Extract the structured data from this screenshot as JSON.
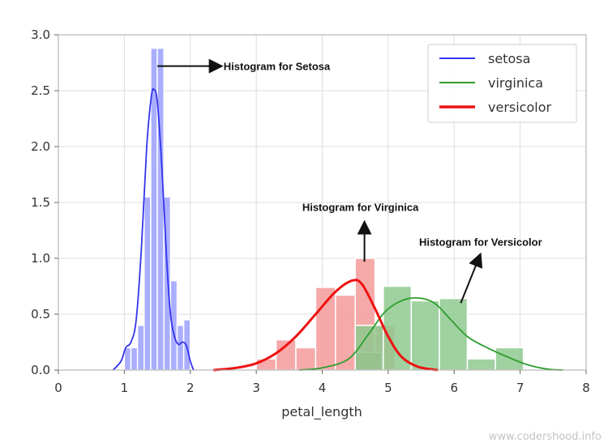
{
  "chart_data": {
    "type": "histogram",
    "xlabel": "petal_length",
    "ylabel": "",
    "xlim": [
      0,
      8
    ],
    "ylim": [
      0,
      3.0
    ],
    "xticks": [
      "0",
      "1",
      "2",
      "3",
      "4",
      "5",
      "6",
      "7",
      "8"
    ],
    "yticks": [
      "0.0",
      "0.5",
      "1.0",
      "1.5",
      "2.0",
      "2.5",
      "3.0"
    ],
    "grid": true,
    "legend": {
      "position": "top-right",
      "entries": [
        {
          "label": "setosa",
          "color": "#3333ee"
        },
        {
          "label": "virginica",
          "color": "#2e9e2e"
        },
        {
          "label": "versicolor",
          "color": "#ee1111"
        }
      ]
    },
    "series": [
      {
        "name": "setosa",
        "color": "#3333ee",
        "bar_color": "#9aa0ff",
        "bin_width": 0.1,
        "bins": [
          {
            "x0": 1.0,
            "h": 0.2
          },
          {
            "x0": 1.1,
            "h": 0.2
          },
          {
            "x0": 1.2,
            "h": 0.4
          },
          {
            "x0": 1.3,
            "h": 1.55
          },
          {
            "x0": 1.4,
            "h": 2.88
          },
          {
            "x0": 1.5,
            "h": 2.88
          },
          {
            "x0": 1.6,
            "h": 1.55
          },
          {
            "x0": 1.7,
            "h": 0.8
          },
          {
            "x0": 1.8,
            "h": 0.4
          },
          {
            "x0": 1.9,
            "h": 0.45
          }
        ],
        "kde": [
          [
            0.83,
            0.0
          ],
          [
            0.95,
            0.08
          ],
          [
            1.02,
            0.2
          ],
          [
            1.1,
            0.25
          ],
          [
            1.18,
            0.45
          ],
          [
            1.26,
            1.1
          ],
          [
            1.34,
            2.0
          ],
          [
            1.41,
            2.45
          ],
          [
            1.45,
            2.51
          ],
          [
            1.5,
            2.4
          ],
          [
            1.57,
            1.8
          ],
          [
            1.64,
            1.0
          ],
          [
            1.7,
            0.5
          ],
          [
            1.76,
            0.3
          ],
          [
            1.82,
            0.23
          ],
          [
            1.88,
            0.25
          ],
          [
            1.94,
            0.22
          ],
          [
            2.0,
            0.08
          ],
          [
            2.05,
            0.0
          ]
        ]
      },
      {
        "name": "virginica",
        "color": "#2e9e2e",
        "bar_color": "#8fc98f",
        "bin_width": 0.425,
        "bins": [
          {
            "x0": 4.5,
            "h": 0.4
          },
          {
            "x0": 4.925,
            "h": 0.75
          },
          {
            "x0": 5.35,
            "h": 0.62
          },
          {
            "x0": 5.775,
            "h": 0.64
          },
          {
            "x0": 6.2,
            "h": 0.1
          },
          {
            "x0": 6.625,
            "h": 0.2
          }
        ],
        "kde": [
          [
            3.65,
            0.0
          ],
          [
            4.0,
            0.02
          ],
          [
            4.4,
            0.1
          ],
          [
            4.7,
            0.32
          ],
          [
            4.95,
            0.52
          ],
          [
            5.2,
            0.62
          ],
          [
            5.45,
            0.645
          ],
          [
            5.7,
            0.6
          ],
          [
            5.95,
            0.45
          ],
          [
            6.2,
            0.3
          ],
          [
            6.5,
            0.2
          ],
          [
            6.8,
            0.12
          ],
          [
            7.1,
            0.05
          ],
          [
            7.4,
            0.01
          ],
          [
            7.65,
            0.0
          ]
        ]
      },
      {
        "name": "versicolor",
        "color": "#ee1111",
        "bar_color": "#f59a9a",
        "bin_width": 0.3,
        "bins": [
          {
            "x0": 3.0,
            "h": 0.1
          },
          {
            "x0": 3.3,
            "h": 0.27
          },
          {
            "x0": 3.6,
            "h": 0.2
          },
          {
            "x0": 3.9,
            "h": 0.74
          },
          {
            "x0": 4.2,
            "h": 0.67
          },
          {
            "x0": 4.5,
            "h": 1.0
          },
          {
            "x0": 4.8,
            "h": 0.4
          }
        ],
        "overlap_bins": [
          {
            "x0": 4.5,
            "w": 0.4,
            "h": 0.16
          }
        ],
        "kde": [
          [
            2.35,
            0.0
          ],
          [
            2.7,
            0.02
          ],
          [
            3.0,
            0.06
          ],
          [
            3.3,
            0.15
          ],
          [
            3.6,
            0.3
          ],
          [
            3.9,
            0.5
          ],
          [
            4.2,
            0.7
          ],
          [
            4.45,
            0.8
          ],
          [
            4.6,
            0.77
          ],
          [
            4.8,
            0.55
          ],
          [
            5.0,
            0.3
          ],
          [
            5.2,
            0.12
          ],
          [
            5.45,
            0.03
          ],
          [
            5.75,
            0.0
          ]
        ]
      }
    ],
    "annotations": [
      {
        "text": "Histogram for Setosa",
        "arrow_from": [
          1.5,
          2.72
        ],
        "arrow_to": [
          2.48,
          2.72
        ],
        "text_anchor": [
          2.48,
          2.72
        ],
        "text_align": "start"
      },
      {
        "text": "Histogram for Virginica",
        "arrow_from": [
          4.64,
          0.97
        ],
        "arrow_to": [
          4.64,
          1.33
        ],
        "text_anchor": [
          4.64,
          1.46
        ],
        "text_align": "middle"
      },
      {
        "text": "Histogram for Versicolor",
        "arrow_from": [
          6.1,
          0.6
        ],
        "arrow_to": [
          6.4,
          1.04
        ],
        "text_anchor": [
          6.4,
          1.12
        ],
        "text_align": "end-center"
      }
    ]
  },
  "watermark": "www.codershood.info"
}
